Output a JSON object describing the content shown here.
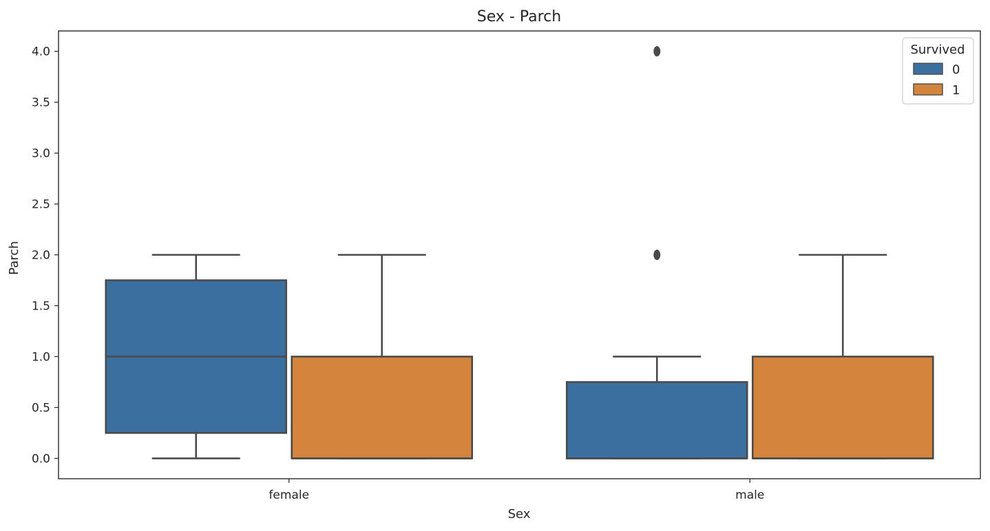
{
  "chart_data": {
    "type": "box",
    "title": "Sex - Parch",
    "xlabel": "Sex",
    "ylabel": "Parch",
    "categories": [
      "female",
      "male"
    ],
    "ylim": [
      -0.2,
      4.2
    ],
    "yticks": [
      0.0,
      0.5,
      1.0,
      1.5,
      2.0,
      2.5,
      3.0,
      3.5,
      4.0
    ],
    "ytick_labels": [
      "0.0",
      "0.5",
      "1.0",
      "1.5",
      "2.0",
      "2.5",
      "3.0",
      "3.5",
      "4.0"
    ],
    "grid": false,
    "legend": {
      "title": "Survived",
      "placement": "top-right",
      "entries": [
        {
          "label": "0",
          "color": "#3a6fa0"
        },
        {
          "label": "1",
          "color": "#d4843d"
        }
      ]
    },
    "boxes": [
      {
        "category": "female",
        "hue": "0",
        "color": "#3a6fa0",
        "whisker_low": 0.0,
        "q1": 0.25,
        "median": 1.0,
        "q3": 1.75,
        "whisker_high": 2.0,
        "outliers": []
      },
      {
        "category": "female",
        "hue": "1",
        "color": "#d4843d",
        "whisker_low": 0.0,
        "q1": 0.0,
        "median": 0.0,
        "q3": 1.0,
        "whisker_high": 2.0,
        "outliers": []
      },
      {
        "category": "male",
        "hue": "0",
        "color": "#3a6fa0",
        "whisker_low": 0.0,
        "q1": 0.0,
        "median": 0.0,
        "q3": 0.75,
        "whisker_high": 1.0,
        "outliers": [
          2.0,
          4.0
        ]
      },
      {
        "category": "male",
        "hue": "1",
        "color": "#d4843d",
        "whisker_low": 0.0,
        "q1": 0.0,
        "median": 0.0,
        "q3": 1.0,
        "whisker_high": 2.0,
        "outliers": []
      }
    ]
  }
}
